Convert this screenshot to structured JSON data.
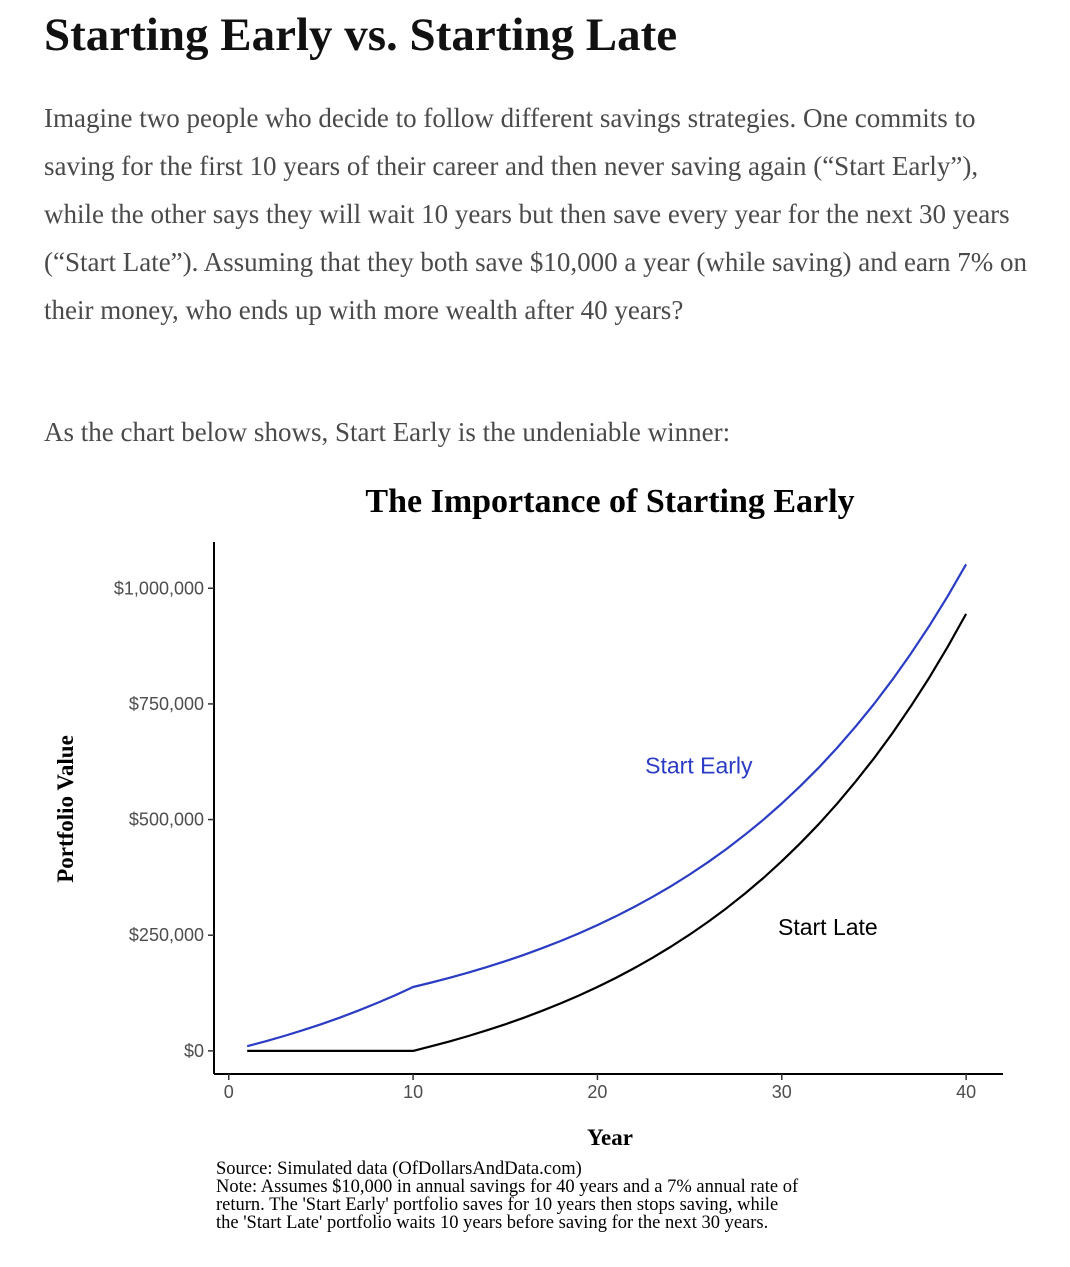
{
  "article": {
    "title": "Starting Early vs. Starting Late",
    "paragraph_1": "Imagine two people who decide to follow different savings strategies. One commits to saving for the first 10 years of their career and then never saving again (“Start Early”), while the other says they will wait 10 years but then save every year for the next 30 years (“Start Late”). Assuming that they both save $10,000 a year (while saving) and earn 7% on their money, who ends up with more wealth after 40 years?",
    "paragraph_2": "As the chart below shows, Start Early is the undeniable winner:"
  },
  "chart_data": {
    "type": "line",
    "title": "The Importance of Starting Early",
    "xlabel": "Year",
    "ylabel": "Portfolio Value",
    "xlim": [
      -0.8,
      42
    ],
    "ylim": [
      -50000,
      1100000
    ],
    "x_ticks": [
      0,
      10,
      20,
      30,
      40
    ],
    "x_tick_labels": [
      "0",
      "10",
      "20",
      "30",
      "40"
    ],
    "y_ticks": [
      0,
      250000,
      500000,
      750000,
      1000000
    ],
    "y_tick_labels": [
      "$0",
      "$250,000",
      "$500,000",
      "$750,000",
      "$1,000,000"
    ],
    "grid": false,
    "legend": "none",
    "series": [
      {
        "name": "Start Early",
        "color": "#2b3cc4",
        "x": [
          1,
          2,
          3,
          4,
          5,
          6,
          7,
          8,
          9,
          10,
          11,
          12,
          13,
          14,
          15,
          16,
          17,
          18,
          19,
          20,
          21,
          22,
          23,
          24,
          25,
          26,
          27,
          28,
          29,
          30,
          31,
          32,
          33,
          34,
          35,
          36,
          37,
          38,
          39,
          40
        ],
        "values": [
          10000,
          20700,
          32149,
          44399,
          57507,
          71533,
          86540,
          102598,
          119780,
          138164,
          147836,
          158185,
          169258,
          181106,
          193783,
          207348,
          221862,
          237393,
          254010,
          271791,
          290816,
          311173,
          332955,
          356262,
          381200,
          407884,
          436436,
          466986,
          499675,
          534652,
          572078,
          612123,
          654972,
          700820,
          749877,
          802369,
          858534,
          918632,
          982936,
          1051741
        ],
        "label_text": "Start Early",
        "label_at": [
          25.5,
          600000
        ]
      },
      {
        "name": "Start Late",
        "color": "#000000",
        "x": [
          1,
          2,
          3,
          4,
          5,
          6,
          7,
          8,
          9,
          10,
          11,
          12,
          13,
          14,
          15,
          16,
          17,
          18,
          19,
          20,
          21,
          22,
          23,
          24,
          25,
          26,
          27,
          28,
          29,
          30,
          31,
          32,
          33,
          34,
          35,
          36,
          37,
          38,
          39,
          40
        ],
        "values": [
          0,
          0,
          0,
          0,
          0,
          0,
          0,
          0,
          0,
          0,
          10000,
          20700,
          32149,
          44399,
          57507,
          71533,
          86540,
          102598,
          119780,
          138164,
          157836,
          178885,
          201406,
          225505,
          251290,
          278881,
          308402,
          339990,
          373790,
          409955,
          448652,
          490057,
          534361,
          581767,
          632490,
          686765,
          744838,
          806977,
          873465,
          944608
        ],
        "label_text": "Start Late",
        "label_at": [
          32.5,
          250000
        ]
      }
    ]
  },
  "caption": {
    "source": "Source: Simulated data (OfDollarsAndData.com)",
    "note_1": "Note: Assumes $10,000 in annual savings for 40 years and a 7% annual rate of",
    "note_2": "return. The 'Start Early' portfolio saves for 10 years then stops saving, while",
    "note_3": "the 'Start Late' portfolio waits 10 years before saving for the next 30 years."
  }
}
